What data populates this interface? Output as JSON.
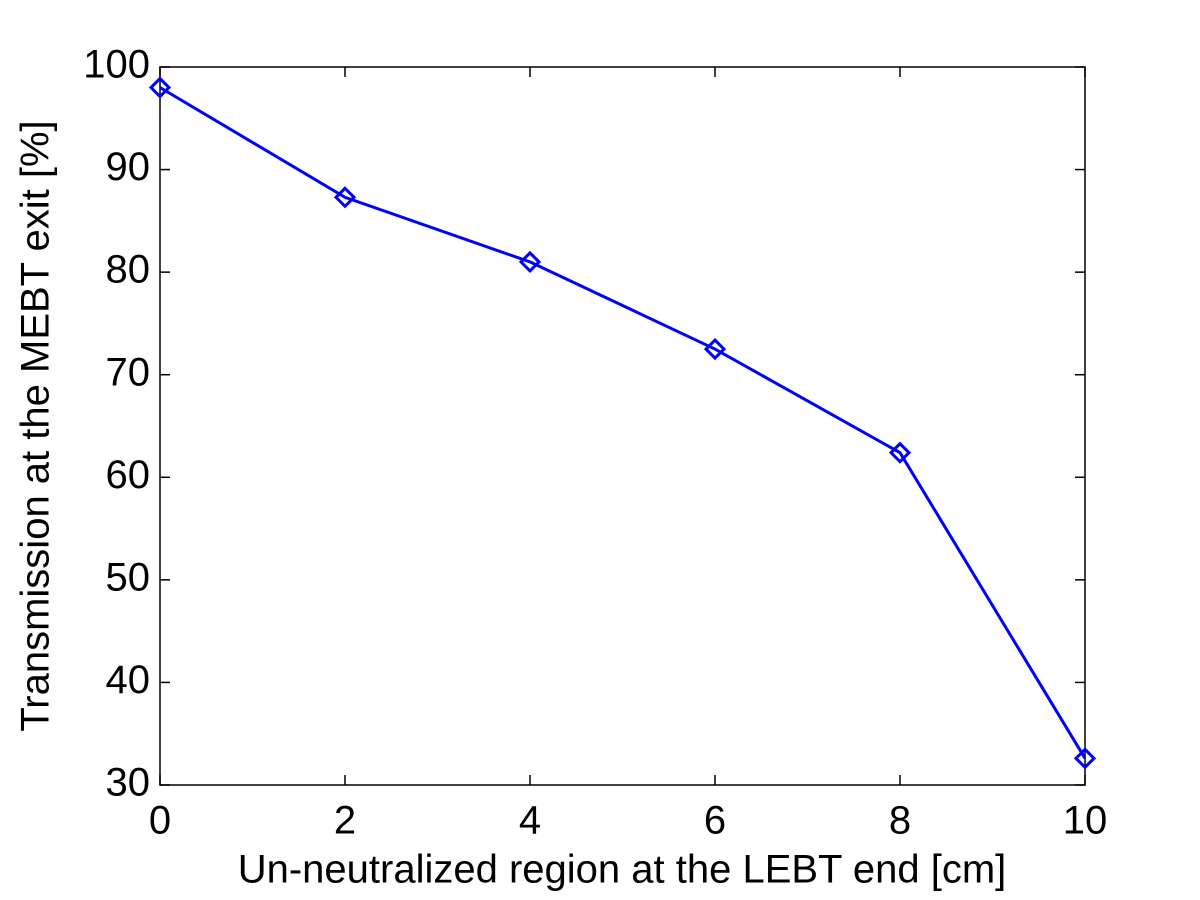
{
  "chart_data": {
    "type": "line",
    "xlabel": "Un-neutralized region at the LEBT end [cm]",
    "ylabel": "Transmission at the MEBT exit [%]",
    "x": [
      0,
      2,
      4,
      6,
      8,
      10
    ],
    "series": [
      {
        "color": "#0000ff",
        "marker": "diamond",
        "values": [
          98,
          87.3,
          81,
          72.5,
          62.4,
          32.6
        ]
      }
    ],
    "xlim": [
      0,
      10
    ],
    "xticks": [
      0,
      2,
      4,
      6,
      8,
      10
    ],
    "ylim": [
      30,
      100
    ],
    "yticks": [
      30,
      40,
      50,
      60,
      70,
      80,
      90,
      100
    ],
    "grid": false
  }
}
